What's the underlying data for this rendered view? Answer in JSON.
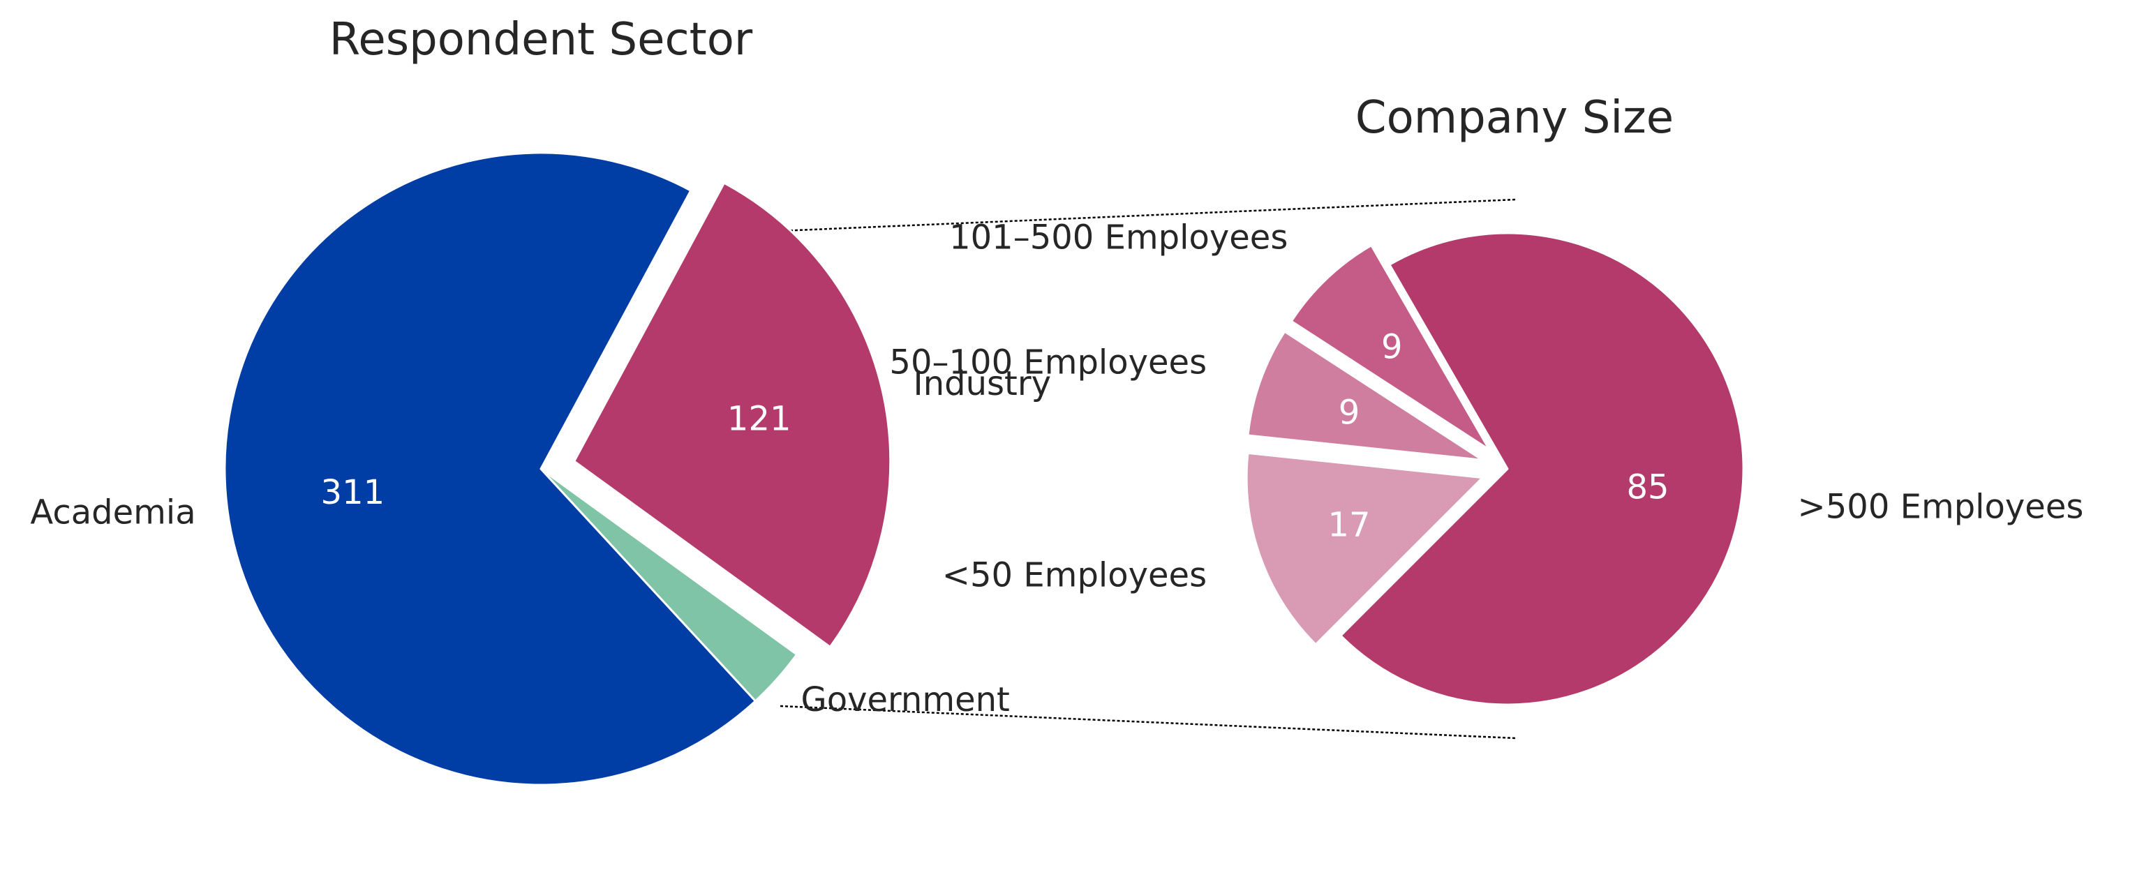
{
  "chart_data": [
    {
      "type": "pie",
      "title": "Respondent Sector",
      "slices": [
        {
          "label": "Academia",
          "value": 311,
          "value_label": "311",
          "color": "#003DA5"
        },
        {
          "label": "Government",
          "value": 14,
          "value_label": "",
          "color": "#7FC4A6"
        },
        {
          "label": "Industry",
          "value": 121,
          "value_label": "121",
          "color": "#B33A6B",
          "exploded": true
        }
      ]
    },
    {
      "type": "pie",
      "title": "Company Size",
      "breakdown_of": "Industry",
      "slices": [
        {
          "label": ">500 Employees",
          "value": 85,
          "value_label": "85",
          "color": "#B33A6B"
        },
        {
          "label": "101–500 Employees",
          "value": 9,
          "value_label": "9",
          "color": "#C55B87",
          "exploded": true
        },
        {
          "label": "50–100 Employees",
          "value": 9,
          "value_label": "9",
          "color": "#CF7E9F",
          "exploded": true
        },
        {
          "label": "<50 Employees",
          "value": 17,
          "value_label": "17",
          "color": "#D99BB4",
          "exploded": true
        }
      ]
    }
  ]
}
